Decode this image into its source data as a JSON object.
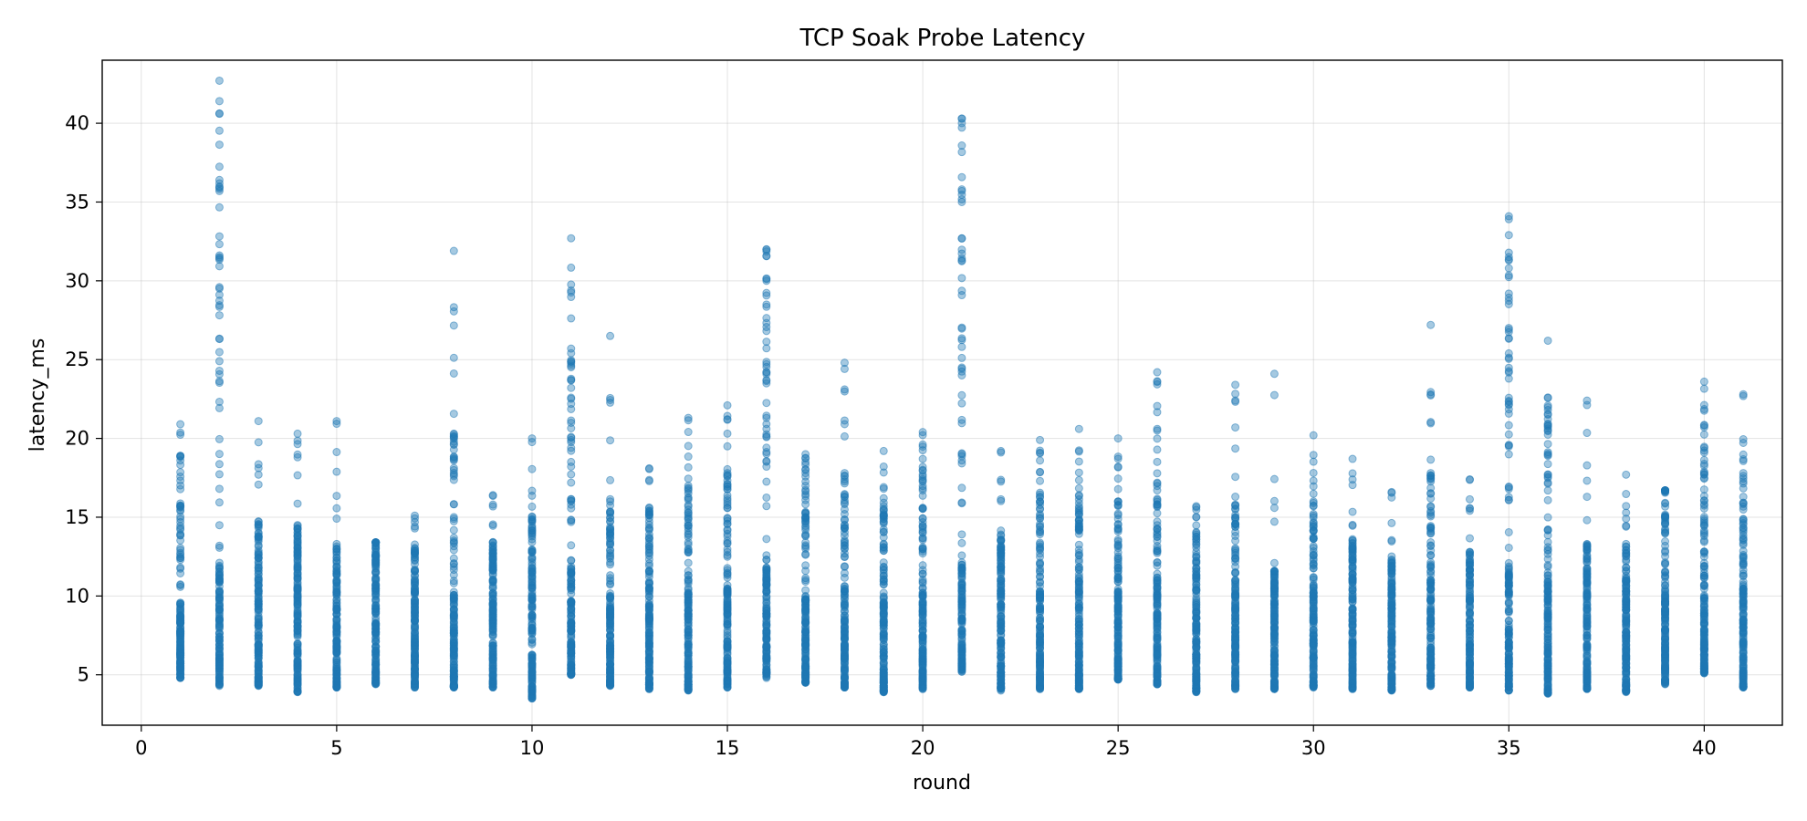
{
  "chart_data": {
    "type": "scatter",
    "title": "TCP Soak Probe Latency",
    "xlabel": "round",
    "ylabel": "latency_ms",
    "xlim": [
      -1,
      42
    ],
    "ylim": [
      1.8,
      44
    ],
    "xticks": [
      0,
      5,
      10,
      15,
      20,
      25,
      30,
      35,
      40
    ],
    "yticks": [
      5,
      10,
      15,
      20,
      25,
      30,
      35,
      40
    ],
    "grid": true,
    "marker_color": "#1f77b4",
    "marker_alpha": 0.4,
    "rounds": [
      {
        "x": 1,
        "min": 4.8,
        "dense_top": 9.5,
        "mid_top": 18.6,
        "max": 20.9
      },
      {
        "x": 2,
        "min": 4.3,
        "dense_top": 12.0,
        "mid_top": 36.4,
        "max": 42.7
      },
      {
        "x": 3,
        "min": 4.3,
        "dense_top": 11.0,
        "mid_top": 14.7,
        "max": 21.1
      },
      {
        "x": 4,
        "min": 3.9,
        "dense_top": 11.5,
        "mid_top": 14.5,
        "max": 20.3
      },
      {
        "x": 5,
        "min": 4.2,
        "dense_top": 10.0,
        "mid_top": 13.3,
        "max": 21.1
      },
      {
        "x": 6,
        "min": 4.4,
        "dense_top": 11.0,
        "mid_top": 13.4,
        "max": 13.4
      },
      {
        "x": 7,
        "min": 4.2,
        "dense_top": 10.0,
        "mid_top": 13.0,
        "max": 15.1
      },
      {
        "x": 8,
        "min": 4.2,
        "dense_top": 10.5,
        "mid_top": 20.3,
        "max": 31.9
      },
      {
        "x": 9,
        "min": 4.2,
        "dense_top": 11.0,
        "mid_top": 13.4,
        "max": 16.4
      },
      {
        "x": 10,
        "min": 3.5,
        "dense_top": 11.0,
        "mid_top": 15.0,
        "max": 20.0
      },
      {
        "x": 11,
        "min": 5.0,
        "dense_top": 12.0,
        "mid_top": 25.7,
        "max": 32.7
      },
      {
        "x": 12,
        "min": 4.3,
        "dense_top": 10.0,
        "mid_top": 16.0,
        "max": 26.5
      },
      {
        "x": 13,
        "min": 4.1,
        "dense_top": 10.5,
        "mid_top": 15.4,
        "max": 18.1
      },
      {
        "x": 14,
        "min": 4.0,
        "dense_top": 10.5,
        "mid_top": 17.0,
        "max": 21.3
      },
      {
        "x": 15,
        "min": 4.2,
        "dense_top": 10.5,
        "mid_top": 17.8,
        "max": 22.1
      },
      {
        "x": 16,
        "min": 4.8,
        "dense_top": 12.0,
        "mid_top": 30.0,
        "max": 32.0
      },
      {
        "x": 17,
        "min": 4.5,
        "dense_top": 10.0,
        "mid_top": 17.8,
        "max": 19.0
      },
      {
        "x": 18,
        "min": 4.2,
        "dense_top": 10.5,
        "mid_top": 17.8,
        "max": 24.8
      },
      {
        "x": 19,
        "min": 3.9,
        "dense_top": 10.0,
        "mid_top": 15.7,
        "max": 19.2
      },
      {
        "x": 20,
        "min": 4.1,
        "dense_top": 10.5,
        "mid_top": 18.0,
        "max": 20.4
      },
      {
        "x": 21,
        "min": 5.2,
        "dense_top": 12.0,
        "mid_top": 35.8,
        "max": 40.3
      },
      {
        "x": 22,
        "min": 4.0,
        "dense_top": 11.0,
        "mid_top": 13.9,
        "max": 19.2
      },
      {
        "x": 23,
        "min": 4.1,
        "dense_top": 10.5,
        "mid_top": 17.3,
        "max": 19.9
      },
      {
        "x": 24,
        "min": 4.1,
        "dense_top": 11.0,
        "mid_top": 16.4,
        "max": 20.6
      },
      {
        "x": 25,
        "min": 4.7,
        "dense_top": 10.5,
        "mid_top": 16.0,
        "max": 20.0
      },
      {
        "x": 26,
        "min": 4.4,
        "dense_top": 11.0,
        "mid_top": 20.5,
        "max": 24.2
      },
      {
        "x": 27,
        "min": 3.9,
        "dense_top": 10.0,
        "mid_top": 14.0,
        "max": 15.7
      },
      {
        "x": 28,
        "min": 4.1,
        "dense_top": 10.5,
        "mid_top": 16.3,
        "max": 23.4
      },
      {
        "x": 29,
        "min": 4.1,
        "dense_top": 10.0,
        "mid_top": 11.6,
        "max": 24.1
      },
      {
        "x": 30,
        "min": 4.2,
        "dense_top": 10.5,
        "mid_top": 16.0,
        "max": 20.2
      },
      {
        "x": 31,
        "min": 4.1,
        "dense_top": 11.0,
        "mid_top": 13.6,
        "max": 18.7
      },
      {
        "x": 32,
        "min": 4.0,
        "dense_top": 10.0,
        "mid_top": 12.3,
        "max": 16.6
      },
      {
        "x": 33,
        "min": 4.3,
        "dense_top": 11.0,
        "mid_top": 17.8,
        "max": 27.2
      },
      {
        "x": 34,
        "min": 4.2,
        "dense_top": 10.0,
        "mid_top": 12.8,
        "max": 17.4
      },
      {
        "x": 35,
        "min": 4.0,
        "dense_top": 12.0,
        "mid_top": 30.8,
        "max": 34.1
      },
      {
        "x": 36,
        "min": 3.8,
        "dense_top": 11.0,
        "mid_top": 21.5,
        "max": 26.2
      },
      {
        "x": 37,
        "min": 4.1,
        "dense_top": 10.5,
        "mid_top": 13.3,
        "max": 22.4
      },
      {
        "x": 38,
        "min": 3.9,
        "dense_top": 9.8,
        "mid_top": 13.3,
        "max": 17.7
      },
      {
        "x": 39,
        "min": 4.4,
        "dense_top": 10.5,
        "mid_top": 16.7,
        "max": 16.7
      },
      {
        "x": 40,
        "min": 5.1,
        "dense_top": 12.0,
        "mid_top": 20.7,
        "max": 23.6
      },
      {
        "x": 41,
        "min": 4.2,
        "dense_top": 11.0,
        "mid_top": 17.8,
        "max": 22.8
      }
    ]
  }
}
